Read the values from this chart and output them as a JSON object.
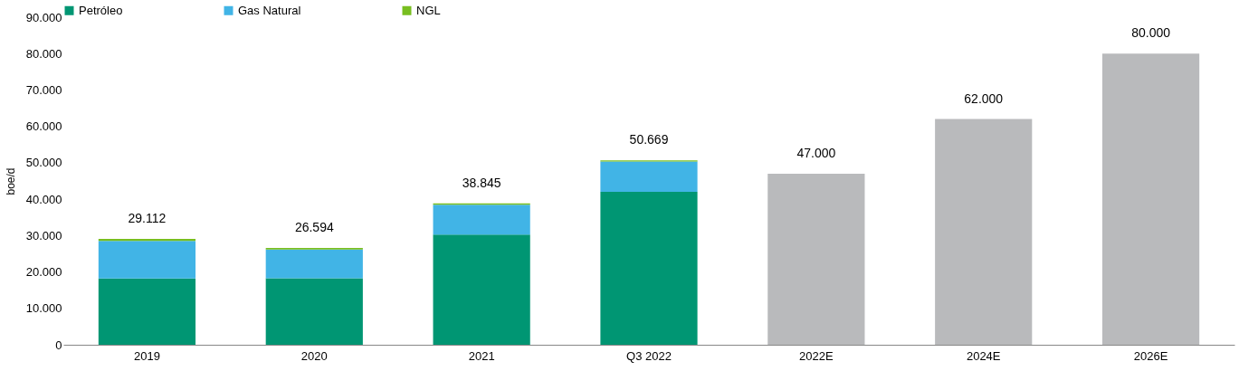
{
  "chart_data": {
    "type": "bar",
    "stacked": true,
    "ylabel": "boe/d",
    "categories": [
      "2019",
      "2020",
      "2021",
      "Q3 2022",
      "2022E",
      "2024E",
      "2026E"
    ],
    "series": [
      {
        "name": "Petróleo",
        "color": "#009673",
        "values": [
          18212,
          18294,
          30295,
          42019,
          null,
          null,
          null
        ]
      },
      {
        "name": "Gas Natural",
        "color": "#41b4e6",
        "values": [
          10300,
          7900,
          8200,
          8300,
          null,
          null,
          null
        ]
      },
      {
        "name": "NGL",
        "color": "#78be20",
        "values": [
          600,
          400,
          350,
          350,
          null,
          null,
          null
        ]
      },
      {
        "color": "#b9babc",
        "values": [
          null,
          null,
          null,
          null,
          47000,
          62000,
          80000
        ]
      }
    ],
    "totals": [
      "29.112",
      "26.594",
      "38.845",
      "50.669",
      "47.000",
      "62.000",
      "80.000"
    ],
    "ylim": [
      0,
      90000
    ],
    "yticks": [
      {
        "value": 0,
        "label": "0"
      },
      {
        "value": 10000,
        "label": "10.000"
      },
      {
        "value": 20000,
        "label": "20.000"
      },
      {
        "value": 30000,
        "label": "30.000"
      },
      {
        "value": 40000,
        "label": "40.000"
      },
      {
        "value": 50000,
        "label": "50.000"
      },
      {
        "value": 60000,
        "label": "60.000"
      },
      {
        "value": 70000,
        "label": "70.000"
      },
      {
        "value": 80000,
        "label": "80.000"
      },
      {
        "value": 90000,
        "label": "90.000"
      }
    ],
    "grid": false,
    "legend": "top left"
  }
}
